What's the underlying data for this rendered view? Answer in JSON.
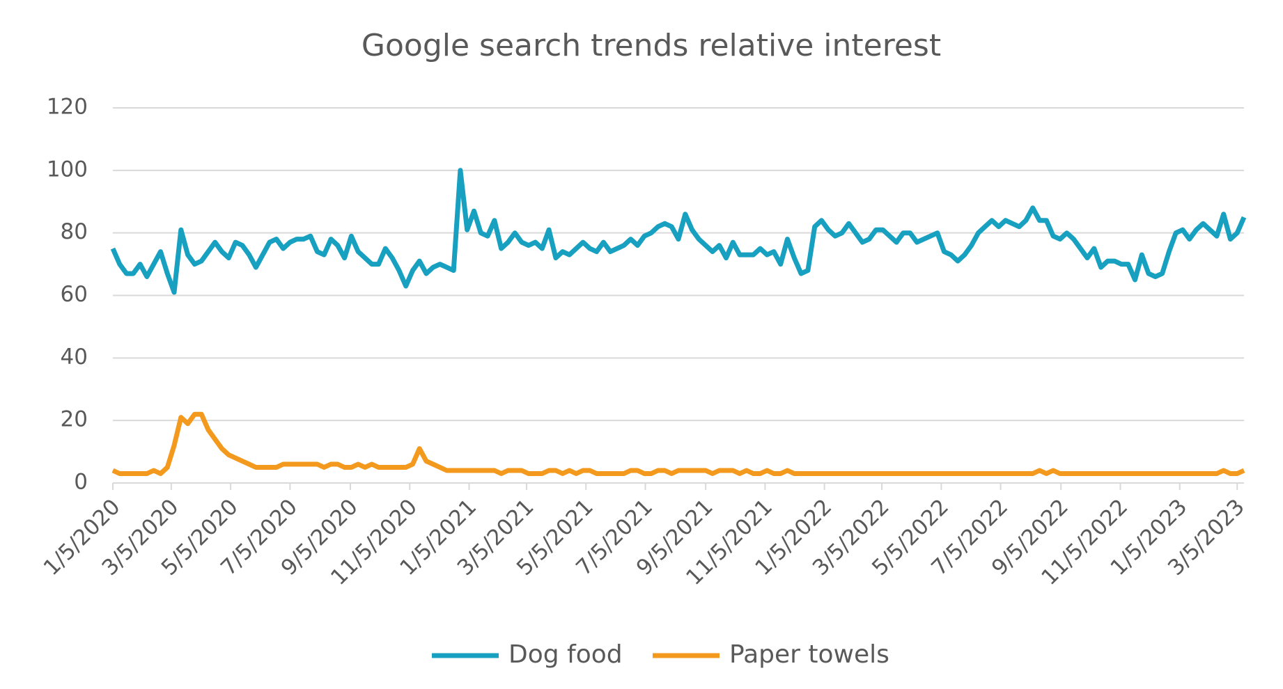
{
  "chart_data": {
    "type": "line",
    "title": "Google search trends relative interest",
    "x": [
      "1/5/2020",
      "1/12/2020",
      "1/19/2020",
      "1/26/2020",
      "2/2/2020",
      "2/9/2020",
      "2/16/2020",
      "2/23/2020",
      "3/1/2020",
      "3/8/2020",
      "3/15/2020",
      "3/22/2020",
      "3/29/2020",
      "4/5/2020",
      "4/12/2020",
      "4/19/2020",
      "4/26/2020",
      "5/3/2020",
      "5/10/2020",
      "5/17/2020",
      "5/24/2020",
      "5/31/2020",
      "6/7/2020",
      "6/14/2020",
      "6/21/2020",
      "6/28/2020",
      "7/5/2020",
      "7/12/2020",
      "7/19/2020",
      "7/26/2020",
      "8/2/2020",
      "8/9/2020",
      "8/16/2020",
      "8/23/2020",
      "8/30/2020",
      "9/6/2020",
      "9/13/2020",
      "9/20/2020",
      "9/27/2020",
      "10/4/2020",
      "10/11/2020",
      "10/18/2020",
      "10/25/2020",
      "11/1/2020",
      "11/8/2020",
      "11/15/2020",
      "11/22/2020",
      "11/29/2020",
      "12/6/2020",
      "12/13/2020",
      "12/20/2020",
      "12/27/2020",
      "1/3/2021",
      "1/10/2021",
      "1/17/2021",
      "1/24/2021",
      "1/31/2021",
      "2/7/2021",
      "2/14/2021",
      "2/21/2021",
      "2/28/2021",
      "3/7/2021",
      "3/14/2021",
      "3/21/2021",
      "3/28/2021",
      "4/4/2021",
      "4/11/2021",
      "4/18/2021",
      "4/25/2021",
      "5/2/2021",
      "5/9/2021",
      "5/16/2021",
      "5/23/2021",
      "5/30/2021",
      "6/6/2021",
      "6/13/2021",
      "6/20/2021",
      "6/27/2021",
      "7/4/2021",
      "7/11/2021",
      "7/18/2021",
      "7/25/2021",
      "8/1/2021",
      "8/8/2021",
      "8/15/2021",
      "8/22/2021",
      "8/29/2021",
      "9/5/2021",
      "9/12/2021",
      "9/19/2021",
      "9/26/2021",
      "10/3/2021",
      "10/10/2021",
      "10/17/2021",
      "10/24/2021",
      "10/31/2021",
      "11/7/2021",
      "11/14/2021",
      "11/21/2021",
      "11/28/2021",
      "12/5/2021",
      "12/12/2021",
      "12/19/2021",
      "12/26/2021",
      "1/2/2022",
      "1/9/2022",
      "1/16/2022",
      "1/23/2022",
      "1/30/2022",
      "2/6/2022",
      "2/13/2022",
      "2/20/2022",
      "2/27/2022",
      "3/6/2022",
      "3/13/2022",
      "3/20/2022",
      "3/27/2022",
      "4/3/2022",
      "4/10/2022",
      "4/17/2022",
      "4/24/2022",
      "5/1/2022",
      "5/8/2022",
      "5/15/2022",
      "5/22/2022",
      "5/29/2022",
      "6/5/2022",
      "6/12/2022",
      "6/19/2022",
      "6/26/2022",
      "7/3/2022",
      "7/10/2022",
      "7/17/2022",
      "7/24/2022",
      "7/31/2022",
      "8/7/2022",
      "8/14/2022",
      "8/21/2022",
      "8/28/2022",
      "9/4/2022",
      "9/11/2022",
      "9/18/2022",
      "9/25/2022",
      "10/2/2022",
      "10/9/2022",
      "10/16/2022",
      "10/23/2022",
      "10/30/2022",
      "11/6/2022",
      "11/13/2022",
      "11/20/2022",
      "11/27/2022",
      "12/4/2022",
      "12/11/2022",
      "12/18/2022",
      "12/25/2022",
      "1/1/2023",
      "1/8/2023",
      "1/15/2023",
      "1/22/2023",
      "1/29/2023",
      "2/5/2023",
      "2/12/2023",
      "2/19/2023",
      "2/26/2023",
      "3/5/2023",
      "3/12/2023"
    ],
    "series": [
      {
        "name": "Dog food",
        "color": "#17a0bf",
        "values": [
          75,
          70,
          67,
          67,
          70,
          66,
          70,
          74,
          67,
          61,
          81,
          73,
          70,
          71,
          74,
          77,
          74,
          72,
          77,
          76,
          73,
          69,
          73,
          77,
          78,
          75,
          77,
          78,
          78,
          79,
          74,
          73,
          78,
          76,
          72,
          79,
          74,
          72,
          70,
          70,
          75,
          72,
          68,
          63,
          68,
          71,
          67,
          69,
          70,
          69,
          68,
          100,
          81,
          87,
          80,
          79,
          84,
          75,
          77,
          80,
          77,
          76,
          77,
          75,
          81,
          72,
          74,
          73,
          75,
          77,
          75,
          74,
          77,
          74,
          75,
          76,
          78,
          76,
          79,
          80,
          82,
          83,
          82,
          78,
          86,
          81,
          78,
          76,
          74,
          76,
          72,
          77,
          73,
          73,
          73,
          75,
          73,
          74,
          70,
          78,
          72,
          67,
          68,
          82,
          84,
          81,
          79,
          80,
          83,
          80,
          77,
          78,
          81,
          81,
          79,
          77,
          80,
          80,
          77,
          78,
          79,
          80,
          74,
          73,
          71,
          73,
          76,
          80,
          82,
          84,
          82,
          84,
          83,
          82,
          84,
          88,
          84,
          84,
          79,
          78,
          80,
          78,
          75,
          72,
          75,
          69,
          71,
          71,
          70,
          70,
          65,
          73,
          67,
          66,
          67,
          74,
          80,
          81,
          78,
          81,
          83,
          81,
          79,
          86,
          78,
          80,
          85
        ]
      },
      {
        "name": "Paper towels",
        "color": "#f39a1e",
        "values": [
          4,
          3,
          3,
          3,
          3,
          3,
          4,
          3,
          5,
          12,
          21,
          19,
          22,
          22,
          17,
          14,
          11,
          9,
          8,
          7,
          6,
          5,
          5,
          5,
          5,
          6,
          6,
          6,
          6,
          6,
          6,
          5,
          6,
          6,
          5,
          5,
          6,
          5,
          6,
          5,
          5,
          5,
          5,
          5,
          6,
          11,
          7,
          6,
          5,
          4,
          4,
          4,
          4,
          4,
          4,
          4,
          4,
          3,
          4,
          4,
          4,
          3,
          3,
          3,
          4,
          4,
          3,
          4,
          3,
          4,
          4,
          3,
          3,
          3,
          3,
          3,
          4,
          4,
          3,
          3,
          4,
          4,
          3,
          4,
          4,
          4,
          4,
          4,
          3,
          4,
          4,
          4,
          3,
          4,
          3,
          3,
          4,
          3,
          3,
          4,
          3,
          3,
          3,
          3,
          3,
          3,
          3,
          3,
          3,
          3,
          3,
          3,
          3,
          3,
          3,
          3,
          3,
          3,
          3,
          3,
          3,
          3,
          3,
          3,
          3,
          3,
          3,
          3,
          3,
          3,
          3,
          3,
          3,
          3,
          3,
          3,
          4,
          3,
          4,
          3,
          3,
          3,
          3,
          3,
          3,
          3,
          3,
          3,
          3,
          3,
          3,
          3,
          3,
          3,
          3,
          3,
          3,
          3,
          3,
          3,
          3,
          3,
          3,
          4,
          3,
          3,
          4
        ]
      }
    ],
    "xlim": [
      "1/5/2020",
      "3/12/2023"
    ],
    "xticks": [
      "1/5/2020",
      "3/5/2020",
      "5/5/2020",
      "7/5/2020",
      "9/5/2020",
      "11/5/2020",
      "1/5/2021",
      "3/5/2021",
      "5/5/2021",
      "7/5/2021",
      "9/5/2021",
      "11/5/2021",
      "1/5/2022",
      "3/5/2022",
      "5/5/2022",
      "7/5/2022",
      "9/5/2022",
      "11/5/2022",
      "1/5/2023",
      "3/5/2023"
    ],
    "ylim": [
      0,
      120
    ],
    "yticks": [
      0,
      20,
      40,
      60,
      80,
      100,
      120
    ],
    "grid": true,
    "legend": "bottom"
  }
}
